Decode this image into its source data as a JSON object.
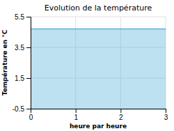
{
  "chart_data": {
    "type": "area",
    "title": "Evolution de la température",
    "xlabel": "heure par heure",
    "ylabel": "Température en °C",
    "x": [
      0,
      1,
      2,
      3
    ],
    "values": [
      4.7,
      4.7,
      4.7,
      4.7
    ],
    "baseline": -0.5,
    "color": "#5ab4d6",
    "xlim": [
      0,
      3
    ],
    "ylim": [
      -0.5,
      5.5
    ],
    "xticks": [
      0,
      1,
      2,
      3
    ],
    "yticks": [
      -0.5,
      1.5,
      3.5,
      5.5
    ],
    "grid": true
  }
}
